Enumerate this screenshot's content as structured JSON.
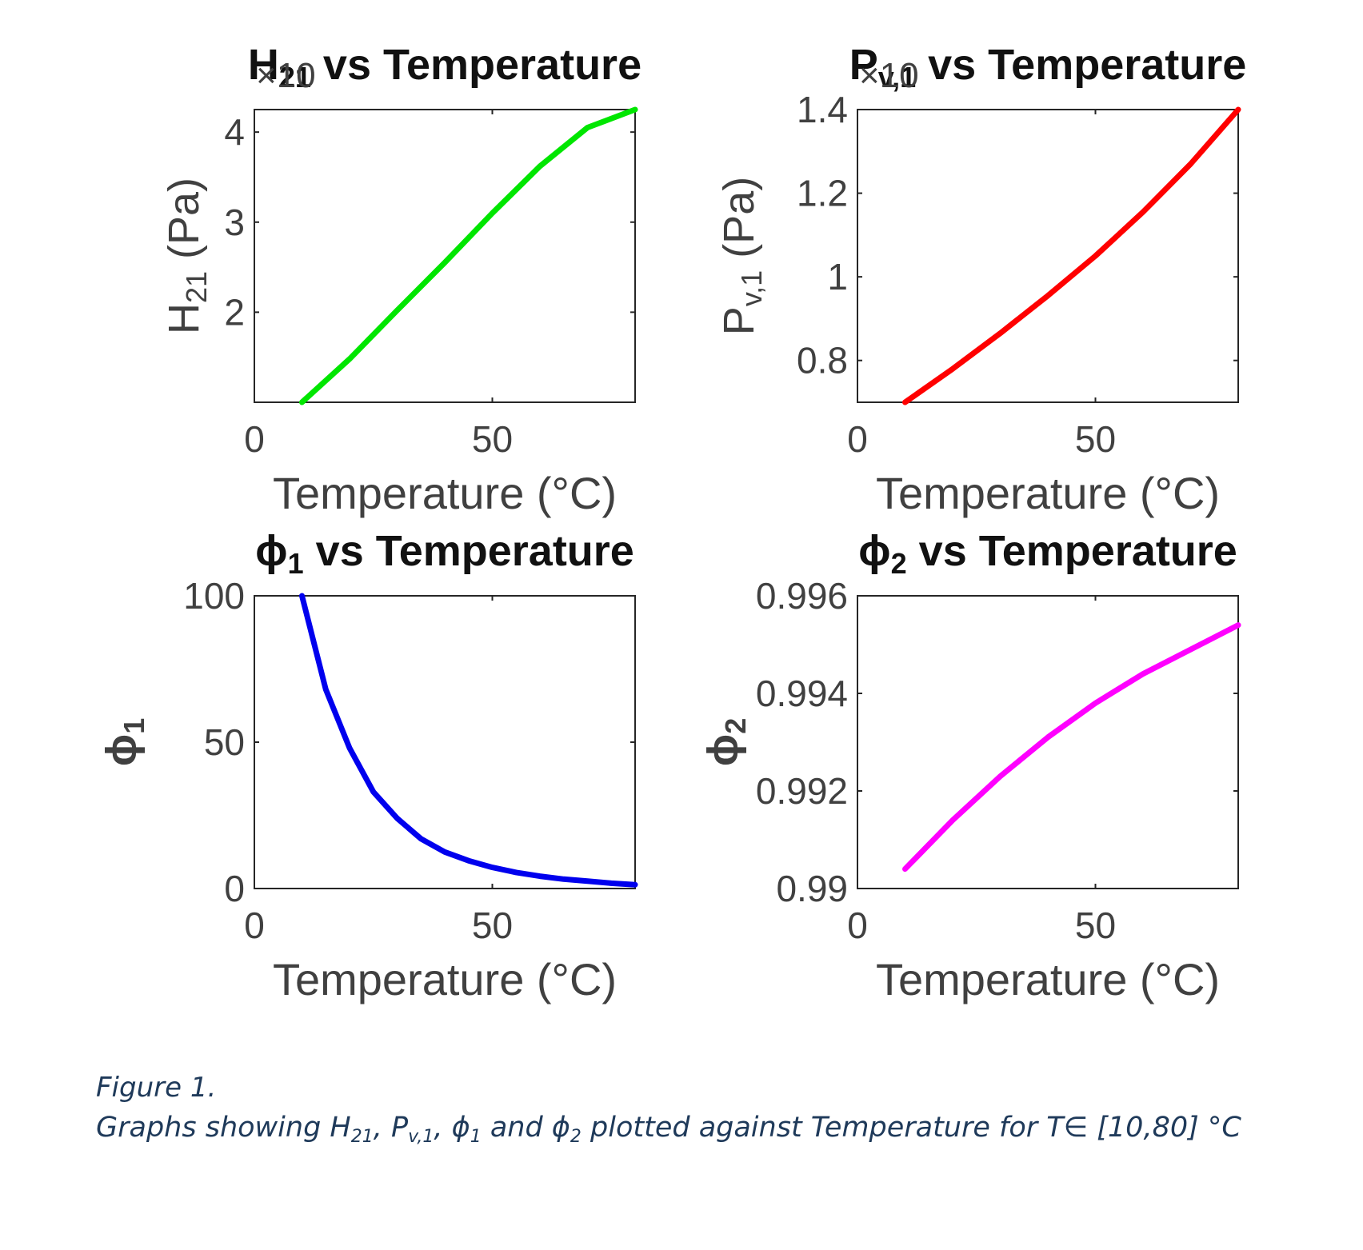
{
  "caption": {
    "label": "Figure 1.",
    "parts": {
      "p1": "Graphs showing H",
      "s1": "21",
      "p2": ", P",
      "s2": "v,1",
      "p3": ", ",
      "phi1": "ϕ",
      "s3": "1",
      "p4": " and ",
      "phi2": "ϕ",
      "s4": "2",
      "p5": " plotted against Temperature for T∈ [10,80] °C"
    }
  },
  "chart_data": [
    {
      "id": "h21",
      "type": "line",
      "title_main": "H",
      "title_sub": "21",
      "title_rest": " vs  Temperature",
      "exponent_label": "×10",
      "xlabel": "Temperature (°C)",
      "ylabel_main": "H",
      "ylabel_sub": "21",
      "ylabel_rest": "  (Pa)",
      "xlim": [
        0,
        80
      ],
      "ylim": [
        1.0,
        4.25
      ],
      "xticks": [
        0,
        50
      ],
      "yticks": [
        2,
        3,
        4
      ],
      "color": "#00e600",
      "series": [
        {
          "name": "H21",
          "x": [
            10,
            20,
            30,
            40,
            50,
            60,
            70,
            80
          ],
          "y": [
            1.0,
            1.48,
            2.02,
            2.55,
            3.1,
            3.62,
            4.05,
            4.25
          ]
        }
      ]
    },
    {
      "id": "pv1",
      "type": "line",
      "title_main": "P",
      "title_sub": "v,1",
      "title_rest": " vs  Temperature",
      "exponent_label": "×10",
      "xlabel": "Temperature (°C)",
      "ylabel_main": "P",
      "ylabel_sub": "v,1",
      "ylabel_rest": "  (Pa)",
      "xlim": [
        0,
        80
      ],
      "ylim": [
        0.7,
        1.4
      ],
      "xticks": [
        0,
        50
      ],
      "yticks": [
        0.8,
        1,
        1.2,
        1.4
      ],
      "color": "#ff0000",
      "series": [
        {
          "name": "Pv,1",
          "x": [
            10,
            20,
            30,
            40,
            50,
            60,
            70,
            80
          ],
          "y": [
            0.7,
            0.78,
            0.865,
            0.955,
            1.05,
            1.155,
            1.27,
            1.4
          ]
        }
      ]
    },
    {
      "id": "phi1",
      "type": "line",
      "title_main": "ϕ",
      "title_sub": "1",
      "title_rest": "  vs  Temperature",
      "xlabel": "Temperature (°C)",
      "ylabel_main": "ϕ",
      "ylabel_sub": "1",
      "ylabel_rest": "",
      "xlim": [
        0,
        80
      ],
      "ylim": [
        0,
        100
      ],
      "xticks": [
        0,
        50
      ],
      "yticks": [
        0,
        50,
        100
      ],
      "color": "#0000ee",
      "series": [
        {
          "name": "phi1",
          "x": [
            10,
            15,
            20,
            25,
            30,
            35,
            40,
            45,
            50,
            55,
            60,
            65,
            70,
            75,
            80
          ],
          "y": [
            100,
            68,
            48,
            33,
            24,
            17,
            12.5,
            9.5,
            7.2,
            5.5,
            4.2,
            3.2,
            2.5,
            1.8,
            1.3
          ]
        }
      ]
    },
    {
      "id": "phi2",
      "type": "line",
      "title_main": "ϕ",
      "title_sub": "2",
      "title_rest": "  vs  Temperature",
      "xlabel": "Temperature (°C)",
      "ylabel_main": "ϕ",
      "ylabel_sub": "2",
      "ylabel_rest": "",
      "xlim": [
        0,
        80
      ],
      "ylim": [
        0.99,
        0.996
      ],
      "xticks": [
        0,
        50
      ],
      "yticks": [
        0.99,
        0.992,
        0.994,
        0.996
      ],
      "color": "#ff00ff",
      "series": [
        {
          "name": "phi2",
          "x": [
            10,
            20,
            30,
            40,
            50,
            60,
            70,
            80
          ],
          "y": [
            0.9904,
            0.9914,
            0.9923,
            0.9931,
            0.9938,
            0.9944,
            0.9949,
            0.9954
          ]
        }
      ]
    }
  ]
}
